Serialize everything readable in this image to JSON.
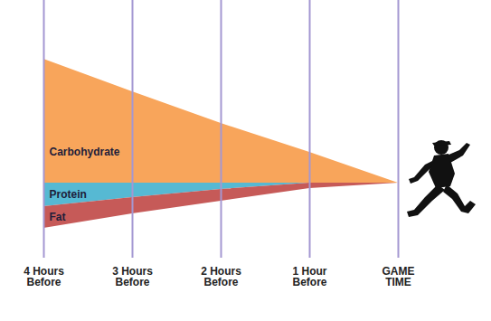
{
  "chart_data": {
    "type": "area",
    "categories": [
      "4 Hours\nBefore",
      "3 Hours\nBefore",
      "2 Hours\nBefore",
      "1 Hour\nBefore",
      "GAME\nTIME"
    ],
    "series": [
      {
        "name": "Carbohydrate",
        "color": "#f8a55b",
        "values": [
          137,
          101,
          66,
          34,
          0
        ]
      },
      {
        "name": "Protein",
        "color": "#56b9d3",
        "values": [
          26,
          16,
          7,
          0,
          0
        ]
      },
      {
        "name": "Fat",
        "color": "#c65a58",
        "values": [
          24,
          18,
          13,
          6,
          0
        ]
      }
    ],
    "stacked": true,
    "grid": true,
    "tick_labels": "x"
  }
}
